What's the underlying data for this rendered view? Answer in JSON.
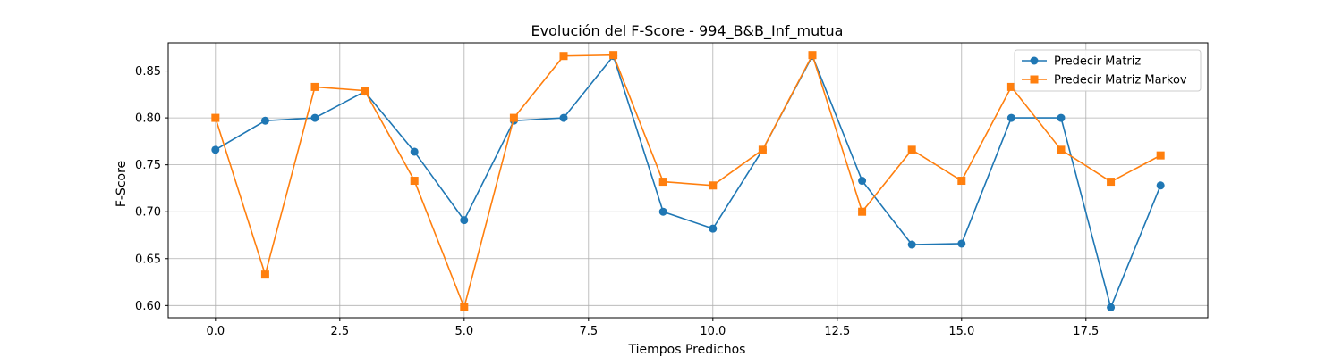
{
  "chart_data": {
    "type": "line",
    "title": "Evolución del F-Score - 994_B&B_Inf_mutua",
    "xlabel": "Tiempos Predichos",
    "ylabel": "F-Score",
    "xlim": [
      -0.95,
      19.95
    ],
    "ylim": [
      0.587,
      0.88
    ],
    "xticks": [
      0.0,
      2.5,
      5.0,
      7.5,
      10.0,
      12.5,
      15.0,
      17.5
    ],
    "xtick_labels": [
      "0.0",
      "2.5",
      "5.0",
      "7.5",
      "10.0",
      "12.5",
      "15.0",
      "17.5"
    ],
    "yticks": [
      0.6,
      0.65,
      0.7,
      0.75,
      0.8,
      0.85
    ],
    "ytick_labels": [
      "0.60",
      "0.65",
      "0.70",
      "0.75",
      "0.80",
      "0.85"
    ],
    "grid": true,
    "legend_position": "top-right",
    "x": [
      0,
      1,
      2,
      3,
      4,
      5,
      6,
      7,
      8,
      9,
      10,
      11,
      12,
      13,
      14,
      15,
      16,
      17,
      18,
      19
    ],
    "series": [
      {
        "name": "Predecir Matriz",
        "color": "#1f77b4",
        "marker": "circle",
        "values": [
          0.766,
          0.797,
          0.8,
          0.828,
          0.764,
          0.691,
          0.797,
          0.8,
          0.866,
          0.7,
          0.682,
          0.766,
          0.866,
          0.733,
          0.665,
          0.666,
          0.8,
          0.8,
          0.598,
          0.728
        ]
      },
      {
        "name": "Predecir Matriz Markov",
        "color": "#ff7f0e",
        "marker": "square",
        "values": [
          0.8,
          0.633,
          0.833,
          0.829,
          0.733,
          0.598,
          0.8,
          0.866,
          0.867,
          0.732,
          0.728,
          0.766,
          0.867,
          0.7,
          0.766,
          0.733,
          0.833,
          0.766,
          0.732,
          0.76
        ]
      }
    ]
  }
}
